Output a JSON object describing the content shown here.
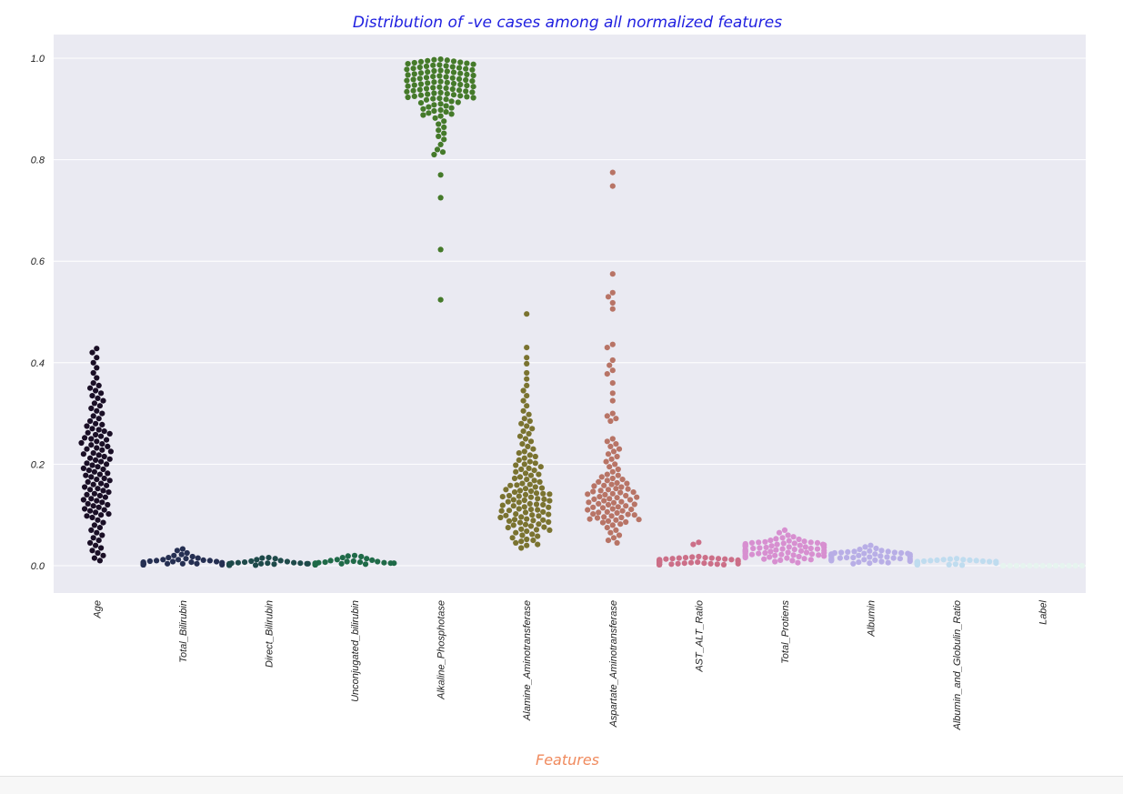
{
  "chart_data": {
    "type": "scatter",
    "style": "swarm",
    "title": "Distribution of -ve cases among all normalized features",
    "xlabel": "Features",
    "ylabel": "",
    "ylim": [
      -0.055,
      1.05
    ],
    "yticks": [
      0.0,
      0.2,
      0.4,
      0.6,
      0.8,
      1.0
    ],
    "yticklabels": [
      "0.0",
      "0.2",
      "0.4",
      "0.6",
      "0.8",
      "1.0"
    ],
    "grid": true,
    "legend": "none",
    "colors": {
      "plot_background": "#eaeaf2",
      "grid": "#ffffff",
      "title": "#1f1fe0",
      "xlabel": "#f08a5d"
    },
    "categories": [
      "Age",
      "Total_Bilirubin",
      "Direct_Bilirubin",
      "Unconjugated_bilirubin",
      "Alkaline_Phosphotase",
      "Alamine_Aminotransferase",
      "Aspartate_Aminotransferase",
      "AST_ALT_Ratio",
      "Total_Protiens",
      "Albumin",
      "Albumin_and_Globulin_Ratio",
      "Label"
    ],
    "series": [
      {
        "color": "#1a0f26",
        "values": [
          0.428,
          0.42,
          0.41,
          0.4,
          0.39,
          0.38,
          0.37,
          0.36,
          0.355,
          0.35,
          0.345,
          0.34,
          0.335,
          0.33,
          0.325,
          0.32,
          0.315,
          0.31,
          0.305,
          0.3,
          0.295,
          0.29,
          0.285,
          0.28,
          0.278,
          0.275,
          0.27,
          0.268,
          0.265,
          0.262,
          0.26,
          0.258,
          0.255,
          0.252,
          0.25,
          0.248,
          0.245,
          0.242,
          0.24,
          0.238,
          0.235,
          0.232,
          0.23,
          0.228,
          0.225,
          0.222,
          0.22,
          0.218,
          0.215,
          0.212,
          0.21,
          0.208,
          0.205,
          0.202,
          0.2,
          0.198,
          0.195,
          0.192,
          0.19,
          0.188,
          0.185,
          0.182,
          0.18,
          0.178,
          0.175,
          0.172,
          0.17,
          0.168,
          0.165,
          0.162,
          0.16,
          0.158,
          0.155,
          0.152,
          0.15,
          0.148,
          0.145,
          0.142,
          0.14,
          0.138,
          0.135,
          0.132,
          0.13,
          0.128,
          0.125,
          0.122,
          0.12,
          0.118,
          0.115,
          0.112,
          0.11,
          0.108,
          0.105,
          0.102,
          0.1,
          0.098,
          0.095,
          0.09,
          0.085,
          0.08,
          0.075,
          0.07,
          0.065,
          0.06,
          0.055,
          0.05,
          0.045,
          0.04,
          0.035,
          0.03,
          0.025,
          0.02,
          0.015,
          0.01
        ]
      },
      {
        "color": "#252f52",
        "values": [
          0.033,
          0.03,
          0.025,
          0.022,
          0.02,
          0.018,
          0.016,
          0.015,
          0.014,
          0.012,
          0.012,
          0.011,
          0.01,
          0.01,
          0.009,
          0.008,
          0.008,
          0.007,
          0.007,
          0.006,
          0.006,
          0.005,
          0.005,
          0.005,
          0.004,
          0.004,
          0.004,
          0.004,
          0.003,
          0.003,
          0.003,
          0.003,
          0.003,
          0.002,
          0.002,
          0.002,
          0.002,
          0.002,
          0.002,
          0.002
        ]
      },
      {
        "color": "#1e4a4a",
        "values": [
          0.016,
          0.015,
          0.014,
          0.012,
          0.01,
          0.009,
          0.008,
          0.007,
          0.006,
          0.006,
          0.005,
          0.005,
          0.005,
          0.004,
          0.004,
          0.004,
          0.004,
          0.003,
          0.003,
          0.003,
          0.003,
          0.003,
          0.002,
          0.002,
          0.002,
          0.002,
          0.002,
          0.002,
          0.002,
          0.002,
          0.001,
          0.001,
          0.001,
          0.001,
          0.001,
          0.001
        ]
      },
      {
        "color": "#1f6a48",
        "values": [
          0.02,
          0.019,
          0.018,
          0.016,
          0.014,
          0.012,
          0.011,
          0.01,
          0.009,
          0.008,
          0.008,
          0.007,
          0.007,
          0.006,
          0.006,
          0.005,
          0.005,
          0.005,
          0.004,
          0.004,
          0.004,
          0.004,
          0.004,
          0.003,
          0.003,
          0.003,
          0.003,
          0.003,
          0.003,
          0.003,
          0.002,
          0.002,
          0.002,
          0.002,
          0.002,
          0.002
        ]
      },
      {
        "color": "#457a2a",
        "values": [
          0.998,
          0.996,
          0.994,
          0.992,
          0.99,
          0.988,
          0.986,
          0.984,
          0.982,
          0.98,
          0.978,
          0.976,
          0.974,
          0.972,
          0.97,
          0.968,
          0.966,
          0.964,
          0.962,
          0.96,
          0.958,
          0.956,
          0.954,
          0.952,
          0.95,
          0.948,
          0.946,
          0.944,
          0.942,
          0.94,
          0.938,
          0.936,
          0.934,
          0.932,
          0.93,
          0.928,
          0.926,
          0.924,
          0.922,
          0.92,
          0.918,
          0.915,
          0.912,
          0.91,
          0.906,
          0.902,
          0.898,
          0.894,
          0.89,
          0.886,
          0.882,
          0.876,
          0.87,
          0.864,
          0.858,
          0.852,
          0.846,
          0.84,
          0.83,
          0.82,
          0.815,
          0.81,
          0.77,
          0.725,
          0.623,
          0.524,
          0.997,
          0.993,
          0.989,
          0.985,
          0.981,
          0.977,
          0.973,
          0.969,
          0.965,
          0.961,
          0.957,
          0.953,
          0.949,
          0.945,
          0.941,
          0.937,
          0.933,
          0.929,
          0.925,
          0.921,
          0.995,
          0.987,
          0.979,
          0.971,
          0.963,
          0.955,
          0.947,
          0.939,
          0.931,
          0.923,
          0.991,
          0.983,
          0.975,
          0.967,
          0.959,
          0.951,
          0.943,
          0.935,
          0.927,
          0.919,
          0.913,
          0.908,
          0.904,
          0.9,
          0.896,
          0.892,
          0.888
        ]
      },
      {
        "color": "#7a7330",
        "values": [
          0.496,
          0.43,
          0.41,
          0.398,
          0.38,
          0.368,
          0.355,
          0.345,
          0.335,
          0.325,
          0.315,
          0.305,
          0.298,
          0.29,
          0.285,
          0.28,
          0.275,
          0.27,
          0.265,
          0.26,
          0.255,
          0.25,
          0.245,
          0.24,
          0.235,
          0.23,
          0.225,
          0.222,
          0.218,
          0.215,
          0.212,
          0.208,
          0.205,
          0.202,
          0.2,
          0.198,
          0.195,
          0.192,
          0.19,
          0.188,
          0.185,
          0.182,
          0.18,
          0.178,
          0.175,
          0.172,
          0.17,
          0.168,
          0.165,
          0.162,
          0.16,
          0.158,
          0.155,
          0.152,
          0.15,
          0.148,
          0.145,
          0.142,
          0.14,
          0.138,
          0.135,
          0.132,
          0.13,
          0.128,
          0.125,
          0.122,
          0.12,
          0.118,
          0.115,
          0.112,
          0.11,
          0.108,
          0.105,
          0.102,
          0.1,
          0.098,
          0.095,
          0.092,
          0.09,
          0.088,
          0.085,
          0.082,
          0.08,
          0.078,
          0.075,
          0.072,
          0.07,
          0.068,
          0.065,
          0.062,
          0.06,
          0.058,
          0.055,
          0.052,
          0.05,
          0.048,
          0.045,
          0.042,
          0.04,
          0.035,
          0.159,
          0.153,
          0.147,
          0.141,
          0.136,
          0.131,
          0.126,
          0.121,
          0.116,
          0.111,
          0.106,
          0.101,
          0.096,
          0.091,
          0.086,
          0.081,
          0.076,
          0.071,
          0.143,
          0.137,
          0.129,
          0.119,
          0.109,
          0.099,
          0.089
        ]
      },
      {
        "color": "#b87466",
        "values": [
          0.775,
          0.748,
          0.575,
          0.538,
          0.53,
          0.518,
          0.506,
          0.436,
          0.43,
          0.405,
          0.395,
          0.385,
          0.378,
          0.36,
          0.34,
          0.325,
          0.3,
          0.295,
          0.29,
          0.285,
          0.25,
          0.245,
          0.24,
          0.235,
          0.23,
          0.225,
          0.22,
          0.215,
          0.21,
          0.205,
          0.2,
          0.195,
          0.19,
          0.185,
          0.18,
          0.178,
          0.175,
          0.172,
          0.17,
          0.168,
          0.165,
          0.162,
          0.16,
          0.158,
          0.155,
          0.152,
          0.15,
          0.148,
          0.145,
          0.142,
          0.14,
          0.138,
          0.135,
          0.132,
          0.13,
          0.128,
          0.125,
          0.122,
          0.12,
          0.118,
          0.115,
          0.112,
          0.11,
          0.108,
          0.105,
          0.102,
          0.1,
          0.098,
          0.095,
          0.092,
          0.09,
          0.088,
          0.085,
          0.082,
          0.08,
          0.075,
          0.07,
          0.065,
          0.06,
          0.055,
          0.05,
          0.045,
          0.163,
          0.157,
          0.151,
          0.146,
          0.141,
          0.136,
          0.131,
          0.126,
          0.121,
          0.116,
          0.111,
          0.106,
          0.101,
          0.096,
          0.091,
          0.086,
          0.144,
          0.134,
          0.124,
          0.114,
          0.104,
          0.094
        ]
      },
      {
        "color": "#cc6f88",
        "values": [
          0.046,
          0.042,
          0.018,
          0.017,
          0.016,
          0.016,
          0.015,
          0.015,
          0.014,
          0.014,
          0.013,
          0.013,
          0.012,
          0.012,
          0.011,
          0.011,
          0.01,
          0.01,
          0.01,
          0.009,
          0.009,
          0.009,
          0.008,
          0.008,
          0.008,
          0.007,
          0.007,
          0.007,
          0.006,
          0.006,
          0.006,
          0.005,
          0.005,
          0.005,
          0.004,
          0.004,
          0.004,
          0.003,
          0.003,
          0.003,
          0.002,
          0.002,
          0.002,
          0.002
        ]
      },
      {
        "color": "#d78fd0",
        "values": [
          0.07,
          0.065,
          0.06,
          0.057,
          0.055,
          0.053,
          0.052,
          0.05,
          0.049,
          0.048,
          0.047,
          0.046,
          0.045,
          0.044,
          0.043,
          0.042,
          0.041,
          0.04,
          0.039,
          0.038,
          0.037,
          0.036,
          0.035,
          0.034,
          0.033,
          0.032,
          0.031,
          0.03,
          0.029,
          0.028,
          0.027,
          0.026,
          0.025,
          0.024,
          0.023,
          0.022,
          0.021,
          0.02,
          0.019,
          0.018,
          0.017,
          0.016,
          0.015,
          0.014,
          0.013,
          0.012,
          0.011,
          0.01,
          0.008,
          0.006,
          0.046,
          0.044,
          0.042,
          0.04,
          0.038,
          0.036,
          0.034,
          0.032,
          0.03,
          0.028,
          0.026,
          0.024,
          0.022,
          0.02,
          0.018,
          0.045,
          0.041,
          0.037,
          0.033,
          0.029,
          0.025,
          0.021
        ]
      },
      {
        "color": "#b8aee6",
        "values": [
          0.04,
          0.037,
          0.034,
          0.032,
          0.03,
          0.029,
          0.028,
          0.027,
          0.026,
          0.025,
          0.024,
          0.023,
          0.022,
          0.021,
          0.02,
          0.019,
          0.018,
          0.017,
          0.016,
          0.015,
          0.014,
          0.013,
          0.012,
          0.011,
          0.01,
          0.009,
          0.008,
          0.007,
          0.006,
          0.005,
          0.004,
          0.025,
          0.023,
          0.021,
          0.019,
          0.017,
          0.015,
          0.013,
          0.011,
          0.02,
          0.018,
          0.016,
          0.014,
          0.012,
          0.022,
          0.024,
          0.026,
          0.028
        ]
      },
      {
        "color": "#bfdcef",
        "values": [
          0.014,
          0.013,
          0.012,
          0.012,
          0.011,
          0.011,
          0.01,
          0.01,
          0.009,
          0.009,
          0.008,
          0.008,
          0.008,
          0.007,
          0.007,
          0.007,
          0.006,
          0.006,
          0.006,
          0.005,
          0.005,
          0.005,
          0.005,
          0.004,
          0.004,
          0.004,
          0.004,
          0.003,
          0.003,
          0.003,
          0.003,
          0.002,
          0.002,
          0.002,
          0.002,
          0.001
        ]
      },
      {
        "color": "#e6f4ef",
        "values": [
          0,
          0,
          0,
          0,
          0,
          0,
          0,
          0,
          0,
          0,
          0,
          0,
          0,
          0,
          0,
          0,
          0,
          0,
          0,
          0,
          0,
          0,
          0,
          0,
          0,
          0,
          0,
          0,
          0,
          0,
          0,
          0,
          0,
          0,
          0,
          0,
          0,
          0,
          0,
          0,
          0,
          0,
          0,
          0,
          0,
          0,
          0,
          0,
          0,
          0,
          0,
          0,
          0,
          0,
          0,
          0
        ]
      }
    ]
  }
}
